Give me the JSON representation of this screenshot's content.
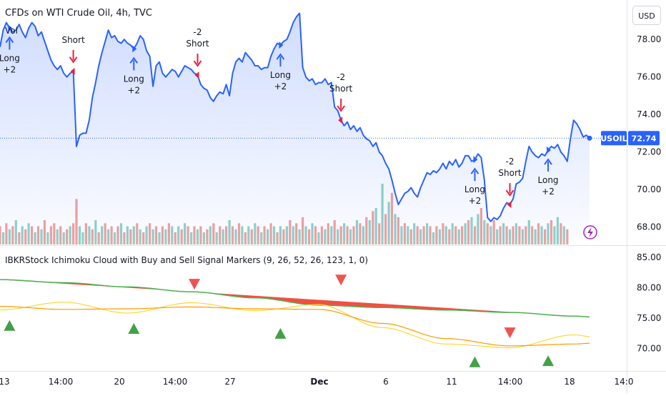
{
  "header": {
    "title": "CFDs on WTI Crude Oil, 4h, TVC",
    "vol_label": "Vol",
    "currency_button": "USD"
  },
  "price_tag": {
    "symbol": "USOIL",
    "value": "72.74"
  },
  "indicator": {
    "title": "IBKRStock Ichimoku Cloud with Buy and Sell Signal Markers (9, 26, 52, 26, 123, 1, 0)"
  },
  "colors": {
    "price_line": "#2962ff",
    "area_fill": "#d7e2fb",
    "long_arrow": "#2962ff",
    "short_arrow": "#e91e42",
    "vol_up": "#8fd3c7",
    "vol_down": "#f2a0a0",
    "cloud_bear": "#f44336",
    "span_a": "#4caf50",
    "tenkan": "#fdd835",
    "kijun": "#ff9800",
    "buy_marker": "#43a047",
    "sell_marker": "#ef5350"
  },
  "chart_data": [
    {
      "type": "line",
      "title": "CFDs on WTI Crude Oil, 4h, TVC",
      "ylim": [
        67.3,
        79.8
      ],
      "yticks": [
        "78.00",
        "76.00",
        "74.00",
        "72.00",
        "70.00",
        "68.00"
      ],
      "xticks": [
        "13",
        "14:00",
        "20",
        "14:00",
        "27",
        "Dec",
        "6",
        "11",
        "14:00",
        "18",
        "14:0"
      ],
      "series": [
        {
          "values": [
            77.6,
            78.5,
            78.9,
            78.6,
            78.4,
            78.5,
            78.8,
            78.4,
            78.1,
            78.6,
            78.9,
            78.7,
            78.2,
            78.4,
            77.9,
            77.4,
            76.9,
            76.6,
            76.4,
            76.6,
            76.2,
            76.0,
            76.2,
            76.3,
            72.3,
            72.9,
            73.0,
            73.0,
            73.7,
            74.9,
            75.7,
            76.6,
            77.3,
            77.9,
            78.5,
            78.1,
            78.2,
            77.9,
            77.8,
            78.0,
            77.8,
            77.7,
            77.5,
            77.8,
            78.2,
            78.0,
            77.4,
            77.1,
            75.5,
            76.6,
            76.8,
            76.2,
            76.0,
            76.2,
            76.4,
            76.3,
            76.0,
            76.3,
            76.6,
            76.5,
            76.4,
            76.2,
            76.1,
            75.6,
            75.4,
            75.3,
            74.9,
            74.7,
            75.0,
            75.2,
            75.1,
            75.6,
            75.0,
            76.2,
            76.8,
            77.0,
            76.8,
            77.3,
            77.1,
            76.9,
            76.6,
            76.6,
            76.4,
            76.5,
            76.5,
            77.1,
            77.5,
            77.8,
            77.7,
            77.9,
            78.0,
            78.4,
            78.9,
            79.2,
            79.4,
            76.5,
            76.0,
            75.8,
            75.9,
            75.6,
            75.7,
            75.7,
            75.9,
            75.6,
            75.7,
            74.4,
            74.2,
            73.7,
            73.4,
            73.6,
            73.2,
            73.4,
            73.1,
            73.3,
            72.9,
            72.7,
            72.6,
            72.3,
            72.5,
            72.0,
            71.8,
            71.4,
            71.1,
            70.5,
            69.8,
            69.2,
            69.5,
            69.8,
            69.9,
            70.1,
            69.8,
            69.6,
            70.1,
            70.5,
            70.9,
            70.8,
            71.0,
            70.9,
            71.1,
            71.4,
            71.1,
            71.5,
            71.3,
            71.6,
            71.2,
            71.4,
            71.8,
            71.8,
            71.5,
            71.6,
            71.9,
            71.7,
            70.5,
            68.5,
            68.3,
            68.5,
            68.4,
            68.6,
            69.0,
            69.3,
            69.2,
            69.5,
            70.3,
            70.4,
            70.6,
            71.5,
            72.3,
            72.0,
            71.8,
            71.7,
            71.9,
            71.8,
            72.1,
            72.3,
            72.2,
            72.4,
            72.0,
            71.8,
            71.5,
            72.7,
            73.7,
            73.5,
            73.2,
            72.8,
            72.9,
            72.74
          ]
        }
      ],
      "volume": [
        {
          "v": 0.3,
          "c": "d"
        },
        {
          "v": 0.2,
          "c": "u"
        },
        {
          "v": 0.35,
          "c": "d"
        },
        {
          "v": 0.25,
          "c": "u"
        },
        {
          "v": 0.3,
          "c": "d"
        },
        {
          "v": 0.4,
          "c": "u"
        },
        {
          "v": 0.2,
          "c": "d"
        },
        {
          "v": 0.3,
          "c": "u"
        },
        {
          "v": 0.25,
          "c": "d"
        },
        {
          "v": 0.35,
          "c": "u"
        },
        {
          "v": 0.3,
          "c": "d"
        },
        {
          "v": 0.2,
          "c": "u"
        },
        {
          "v": 0.3,
          "c": "d"
        },
        {
          "v": 0.25,
          "c": "u"
        },
        {
          "v": 0.4,
          "c": "d"
        },
        {
          "v": 0.2,
          "c": "u"
        },
        {
          "v": 0.3,
          "c": "d"
        },
        {
          "v": 0.35,
          "c": "d"
        },
        {
          "v": 0.25,
          "c": "u"
        },
        {
          "v": 0.3,
          "c": "d"
        },
        {
          "v": 0.2,
          "c": "u"
        },
        {
          "v": 0.25,
          "c": "d"
        },
        {
          "v": 0.3,
          "c": "u"
        },
        {
          "v": 0.35,
          "c": "d"
        },
        {
          "v": 0.75,
          "c": "d"
        },
        {
          "v": 0.3,
          "c": "u"
        },
        {
          "v": 0.2,
          "c": "u"
        },
        {
          "v": 0.35,
          "c": "d"
        },
        {
          "v": 0.3,
          "c": "u"
        },
        {
          "v": 0.25,
          "c": "d"
        },
        {
          "v": 0.4,
          "c": "u"
        },
        {
          "v": 0.2,
          "c": "d"
        },
        {
          "v": 0.3,
          "c": "u"
        },
        {
          "v": 0.35,
          "c": "d"
        },
        {
          "v": 0.25,
          "c": "u"
        },
        {
          "v": 0.3,
          "c": "d"
        },
        {
          "v": 0.2,
          "c": "u"
        },
        {
          "v": 0.3,
          "c": "d"
        },
        {
          "v": 0.35,
          "c": "u"
        },
        {
          "v": 0.2,
          "c": "d"
        },
        {
          "v": 0.3,
          "c": "u"
        },
        {
          "v": 0.25,
          "c": "d"
        },
        {
          "v": 0.3,
          "c": "u"
        },
        {
          "v": 0.35,
          "c": "d"
        },
        {
          "v": 0.25,
          "c": "u"
        },
        {
          "v": 0.2,
          "c": "d"
        },
        {
          "v": 0.3,
          "c": "u"
        },
        {
          "v": 0.35,
          "c": "d"
        },
        {
          "v": 0.25,
          "c": "u"
        },
        {
          "v": 0.3,
          "c": "d"
        },
        {
          "v": 0.2,
          "c": "u"
        },
        {
          "v": 0.3,
          "c": "d"
        },
        {
          "v": 0.25,
          "c": "u"
        },
        {
          "v": 0.35,
          "c": "d"
        },
        {
          "v": 0.3,
          "c": "u"
        },
        {
          "v": 0.2,
          "c": "d"
        },
        {
          "v": 0.3,
          "c": "u"
        },
        {
          "v": 0.25,
          "c": "d"
        },
        {
          "v": 0.35,
          "c": "u"
        },
        {
          "v": 0.3,
          "c": "d"
        },
        {
          "v": 0.2,
          "c": "u"
        },
        {
          "v": 0.3,
          "c": "d"
        },
        {
          "v": 0.25,
          "c": "u"
        },
        {
          "v": 0.3,
          "c": "d"
        },
        {
          "v": 0.2,
          "c": "u"
        },
        {
          "v": 0.25,
          "c": "d"
        },
        {
          "v": 0.3,
          "c": "u"
        },
        {
          "v": 0.35,
          "c": "d"
        },
        {
          "v": 0.2,
          "c": "u"
        },
        {
          "v": 0.3,
          "c": "d"
        },
        {
          "v": 0.25,
          "c": "u"
        },
        {
          "v": 0.3,
          "c": "d"
        },
        {
          "v": 0.4,
          "c": "u"
        },
        {
          "v": 0.3,
          "c": "d"
        },
        {
          "v": 0.25,
          "c": "u"
        },
        {
          "v": 0.35,
          "c": "d"
        },
        {
          "v": 0.3,
          "c": "u"
        },
        {
          "v": 0.2,
          "c": "d"
        },
        {
          "v": 0.3,
          "c": "u"
        },
        {
          "v": 0.25,
          "c": "d"
        },
        {
          "v": 0.35,
          "c": "u"
        },
        {
          "v": 0.3,
          "c": "d"
        },
        {
          "v": 0.2,
          "c": "u"
        },
        {
          "v": 0.3,
          "c": "d"
        },
        {
          "v": 0.25,
          "c": "u"
        },
        {
          "v": 0.35,
          "c": "d"
        },
        {
          "v": 0.3,
          "c": "u"
        },
        {
          "v": 0.2,
          "c": "d"
        },
        {
          "v": 0.3,
          "c": "u"
        },
        {
          "v": 0.25,
          "c": "d"
        },
        {
          "v": 0.3,
          "c": "u"
        },
        {
          "v": 0.4,
          "c": "d"
        },
        {
          "v": 0.3,
          "c": "u"
        },
        {
          "v": 0.35,
          "c": "d"
        },
        {
          "v": 0.25,
          "c": "u"
        },
        {
          "v": 0.45,
          "c": "d"
        },
        {
          "v": 0.3,
          "c": "u"
        },
        {
          "v": 0.25,
          "c": "d"
        },
        {
          "v": 0.35,
          "c": "u"
        },
        {
          "v": 0.3,
          "c": "d"
        },
        {
          "v": 0.2,
          "c": "u"
        },
        {
          "v": 0.3,
          "c": "d"
        },
        {
          "v": 0.25,
          "c": "u"
        },
        {
          "v": 0.35,
          "c": "d"
        },
        {
          "v": 0.3,
          "c": "u"
        },
        {
          "v": 0.4,
          "c": "d"
        },
        {
          "v": 0.25,
          "c": "u"
        },
        {
          "v": 0.3,
          "c": "d"
        },
        {
          "v": 0.35,
          "c": "u"
        },
        {
          "v": 0.3,
          "c": "d"
        },
        {
          "v": 0.25,
          "c": "u"
        },
        {
          "v": 0.3,
          "c": "d"
        },
        {
          "v": 0.4,
          "c": "u"
        },
        {
          "v": 0.35,
          "c": "d"
        },
        {
          "v": 0.3,
          "c": "u"
        },
        {
          "v": 0.45,
          "c": "d"
        },
        {
          "v": 0.4,
          "c": "u"
        },
        {
          "v": 0.55,
          "c": "d"
        },
        {
          "v": 0.6,
          "c": "u"
        },
        {
          "v": 0.35,
          "c": "d"
        },
        {
          "v": 1.0,
          "c": "u"
        },
        {
          "v": 0.5,
          "c": "d"
        },
        {
          "v": 0.7,
          "c": "u"
        },
        {
          "v": 0.85,
          "c": "d"
        },
        {
          "v": 0.5,
          "c": "u"
        },
        {
          "v": 0.45,
          "c": "d"
        },
        {
          "v": 0.3,
          "c": "u"
        },
        {
          "v": 0.35,
          "c": "d"
        },
        {
          "v": 0.3,
          "c": "u"
        },
        {
          "v": 0.25,
          "c": "d"
        },
        {
          "v": 0.35,
          "c": "u"
        },
        {
          "v": 0.3,
          "c": "d"
        },
        {
          "v": 0.25,
          "c": "u"
        },
        {
          "v": 0.3,
          "c": "d"
        },
        {
          "v": 0.35,
          "c": "u"
        },
        {
          "v": 0.3,
          "c": "d"
        },
        {
          "v": 0.2,
          "c": "u"
        },
        {
          "v": 0.3,
          "c": "d"
        },
        {
          "v": 0.25,
          "c": "u"
        },
        {
          "v": 0.35,
          "c": "d"
        },
        {
          "v": 0.3,
          "c": "u"
        },
        {
          "v": 0.25,
          "c": "d"
        },
        {
          "v": 0.35,
          "c": "u"
        },
        {
          "v": 0.3,
          "c": "d"
        },
        {
          "v": 0.25,
          "c": "u"
        },
        {
          "v": 0.3,
          "c": "d"
        },
        {
          "v": 0.35,
          "c": "u"
        },
        {
          "v": 0.4,
          "c": "d"
        },
        {
          "v": 0.45,
          "c": "u"
        },
        {
          "v": 0.3,
          "c": "d"
        },
        {
          "v": 0.5,
          "c": "u"
        },
        {
          "v": 0.6,
          "c": "d"
        },
        {
          "v": 0.4,
          "c": "u"
        },
        {
          "v": 0.35,
          "c": "d"
        },
        {
          "v": 0.3,
          "c": "u"
        },
        {
          "v": 0.4,
          "c": "d"
        },
        {
          "v": 0.25,
          "c": "u"
        },
        {
          "v": 0.3,
          "c": "d"
        },
        {
          "v": 0.35,
          "c": "u"
        },
        {
          "v": 0.3,
          "c": "d"
        },
        {
          "v": 0.25,
          "c": "u"
        },
        {
          "v": 0.3,
          "c": "d"
        },
        {
          "v": 0.35,
          "c": "u"
        },
        {
          "v": 0.3,
          "c": "d"
        },
        {
          "v": 0.25,
          "c": "u"
        },
        {
          "v": 0.3,
          "c": "d"
        },
        {
          "v": 0.4,
          "c": "u"
        },
        {
          "v": 0.3,
          "c": "d"
        },
        {
          "v": 0.25,
          "c": "u"
        },
        {
          "v": 0.35,
          "c": "d"
        },
        {
          "v": 0.3,
          "c": "u"
        },
        {
          "v": 0.25,
          "c": "d"
        },
        {
          "v": 0.35,
          "c": "u"
        },
        {
          "v": 0.4,
          "c": "d"
        },
        {
          "v": 0.3,
          "c": "u"
        },
        {
          "v": 0.45,
          "c": "u"
        },
        {
          "v": 0.35,
          "c": "d"
        },
        {
          "v": 0.3,
          "c": "u"
        },
        {
          "v": 0.25,
          "c": "d"
        }
      ],
      "signals": [
        {
          "i": 3,
          "kind": "long",
          "text": [
            "Long",
            "+2"
          ]
        },
        {
          "i": 23,
          "kind": "short",
          "text": [
            "Short"
          ]
        },
        {
          "i": 42,
          "kind": "long",
          "text": [
            "Long",
            "+2"
          ]
        },
        {
          "i": 62,
          "kind": "short",
          "text": [
            "-2",
            "Short"
          ]
        },
        {
          "i": 88,
          "kind": "long",
          "text": [
            "Long",
            "+2"
          ]
        },
        {
          "i": 107,
          "kind": "short",
          "text": [
            "-2",
            "Short"
          ]
        },
        {
          "i": 149,
          "kind": "long",
          "text": [
            "Long",
            "+2"
          ]
        },
        {
          "i": 160,
          "kind": "short",
          "text": [
            "-2",
            "Short"
          ]
        },
        {
          "i": 172,
          "kind": "long",
          "text": [
            "Long",
            "+2"
          ]
        }
      ]
    },
    {
      "type": "line",
      "title": "IBKRStock Ichimoku Cloud with Buy and Sell Signal Markers (9, 26, 52, 26, 123, 1, 0)",
      "ylim": [
        66.5,
        86.5
      ],
      "yticks": [
        "85.00",
        "80.00",
        "75.00",
        "70.00"
      ],
      "x": [
        0,
        20,
        40,
        60,
        80,
        100,
        120,
        140,
        160,
        180,
        190
      ],
      "series": [
        {
          "name": "",
          "role": "span_a",
          "values": [
            81.3,
            80.8,
            80.1,
            79.3,
            78.3,
            77.1,
            76.7,
            76.3,
            75.9,
            75.3,
            75.0
          ]
        },
        {
          "name": "",
          "role": "span_b",
          "values": [
            79.6,
            78.9,
            78.0,
            77.2,
            76.6,
            76.0,
            75.5,
            74.5,
            73.6,
            72.4,
            72.1
          ]
        },
        {
          "name": "",
          "role": "tenkan",
          "values": [
            76.3,
            77.6,
            75.8,
            77.5,
            76.2,
            77.2,
            73.4,
            70.7,
            70.1,
            72.2,
            71.5
          ]
        },
        {
          "name": "",
          "role": "kijun",
          "values": [
            76.9,
            76.4,
            76.5,
            76.8,
            76.5,
            76.4,
            74.1,
            71.6,
            70.4,
            70.7,
            71.0
          ]
        }
      ],
      "markers": [
        {
          "i": 3,
          "kind": "buy",
          "y": 73.7
        },
        {
          "i": 42,
          "kind": "buy",
          "y": 73.2
        },
        {
          "i": 61,
          "kind": "sell",
          "y": 80.6
        },
        {
          "i": 88,
          "kind": "buy",
          "y": 72.4
        },
        {
          "i": 107,
          "kind": "sell",
          "y": 81.3
        },
        {
          "i": 149,
          "kind": "buy",
          "y": 67.7
        },
        {
          "i": 160,
          "kind": "sell",
          "y": 72.6
        },
        {
          "i": 172,
          "kind": "buy",
          "y": 67.9
        }
      ]
    }
  ]
}
